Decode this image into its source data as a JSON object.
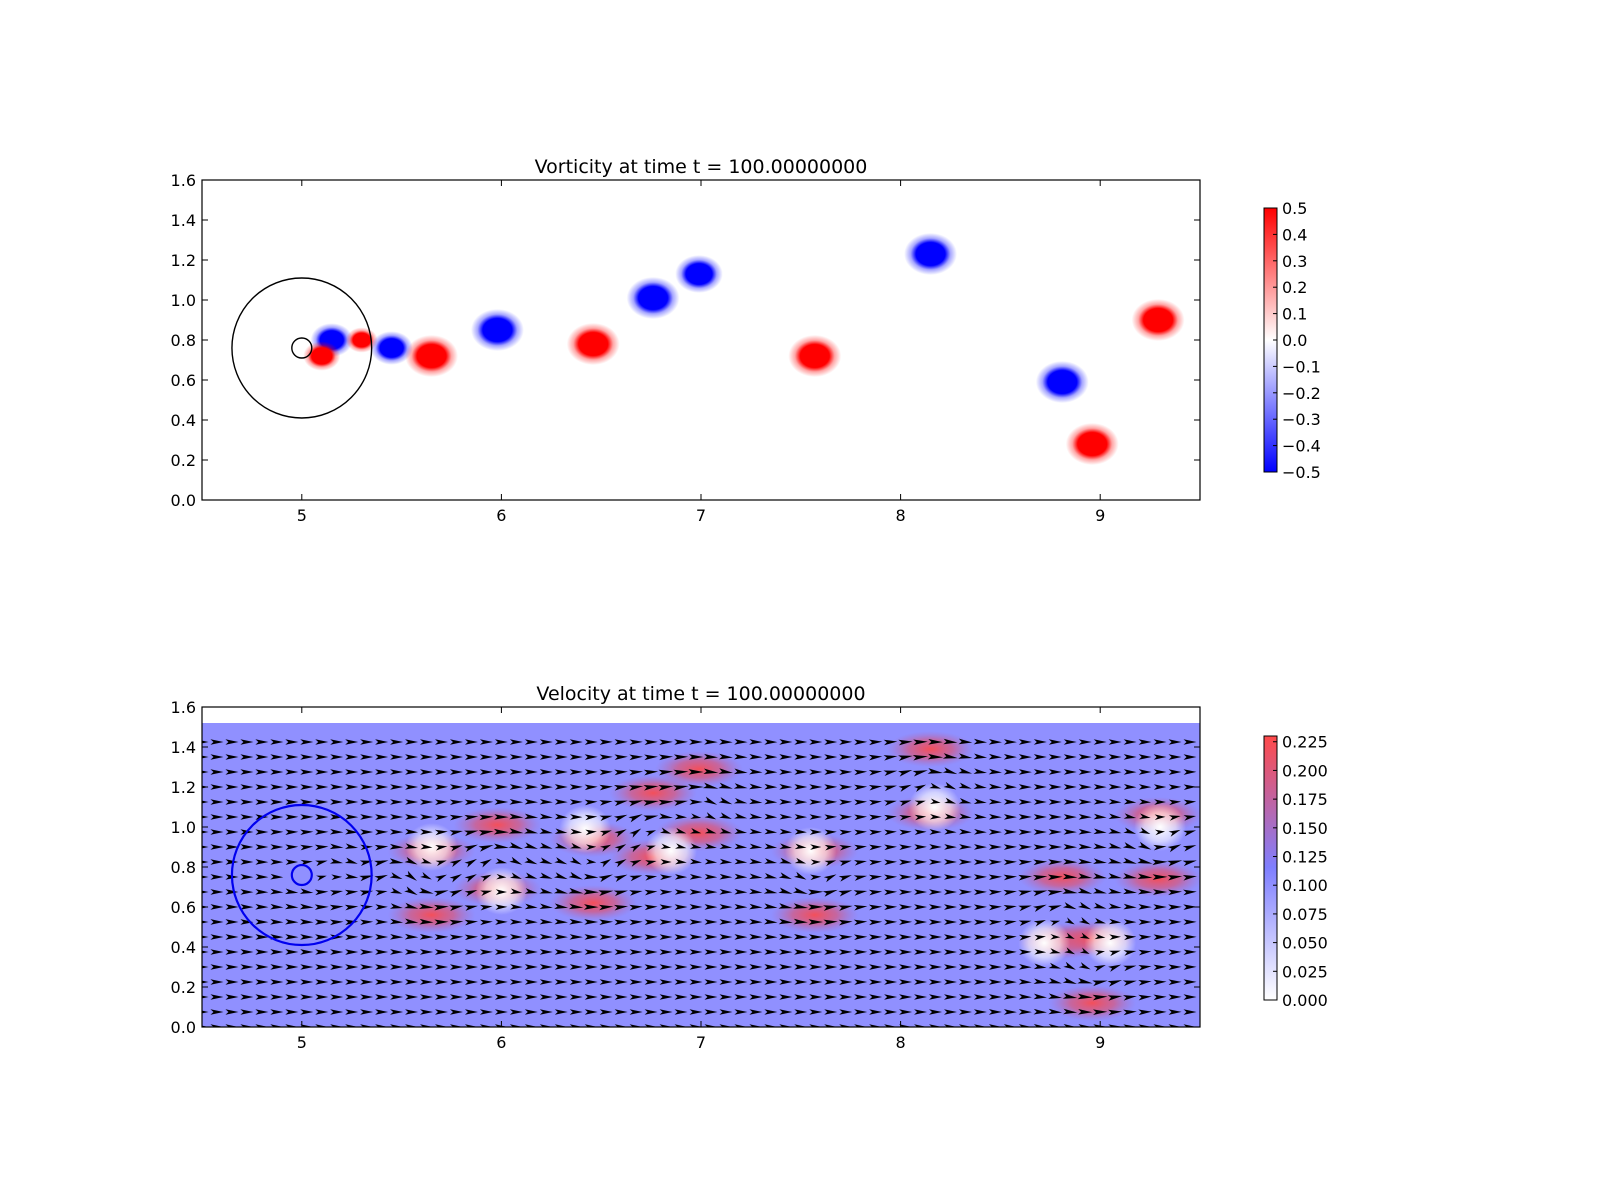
{
  "chart_data": [
    {
      "type": "heatmap",
      "title": "Vorticity at time t =   100.00000000",
      "xlabel": "",
      "ylabel": "",
      "xlim": [
        4.5,
        9.5
      ],
      "ylim": [
        0.0,
        1.6
      ],
      "xticks": [
        "5",
        "6",
        "7",
        "8",
        "9"
      ],
      "yticks": [
        "0.0",
        "0.2",
        "0.4",
        "0.6",
        "0.8",
        "1.0",
        "1.2",
        "1.4",
        "1.6"
      ],
      "colormap": [
        "#0000ff",
        "#ffffff",
        "#ff0000"
      ],
      "colorbar": {
        "range": [
          -0.5,
          0.5
        ],
        "ticks": [
          "0.5",
          "0.4",
          "0.3",
          "0.2",
          "0.1",
          "0.0",
          "−0.1",
          "−0.2",
          "−0.3",
          "−0.4",
          "−0.5"
        ]
      },
      "boundary_circles": [
        {
          "cx": 5.0,
          "cy": 0.76,
          "r": 0.35,
          "color": "#000000"
        },
        {
          "cx": 5.0,
          "cy": 0.76,
          "r": 0.05,
          "color": "#000000"
        }
      ],
      "vortices": [
        {
          "x": 5.15,
          "y": 0.8,
          "sign": -1,
          "strength": 0.8
        },
        {
          "x": 5.1,
          "y": 0.72,
          "sign": 1,
          "strength": 0.7
        },
        {
          "x": 5.3,
          "y": 0.8,
          "sign": 1,
          "strength": 0.6
        },
        {
          "x": 5.45,
          "y": 0.76,
          "sign": -1,
          "strength": 0.8
        },
        {
          "x": 5.65,
          "y": 0.72,
          "sign": 1,
          "strength": 1.0
        },
        {
          "x": 5.98,
          "y": 0.85,
          "sign": -1,
          "strength": 1.0
        },
        {
          "x": 6.46,
          "y": 0.78,
          "sign": 1,
          "strength": 1.0
        },
        {
          "x": 6.76,
          "y": 1.01,
          "sign": -1,
          "strength": 1.0
        },
        {
          "x": 6.99,
          "y": 1.13,
          "sign": -1,
          "strength": 0.9
        },
        {
          "x": 7.57,
          "y": 0.72,
          "sign": 1,
          "strength": 1.0
        },
        {
          "x": 8.15,
          "y": 1.23,
          "sign": -1,
          "strength": 1.0
        },
        {
          "x": 8.81,
          "y": 0.59,
          "sign": -1,
          "strength": 1.0
        },
        {
          "x": 8.96,
          "y": 0.28,
          "sign": 1,
          "strength": 1.0
        },
        {
          "x": 9.29,
          "y": 0.9,
          "sign": 1,
          "strength": 1.0
        }
      ]
    },
    {
      "type": "heatmap",
      "title": "Velocity at time t =   100.00000000",
      "xlabel": "",
      "ylabel": "",
      "xlim": [
        4.5,
        9.5
      ],
      "ylim": [
        0.0,
        1.6
      ],
      "xticks": [
        "5",
        "6",
        "7",
        "8",
        "9"
      ],
      "yticks": [
        "0.0",
        "0.2",
        "0.4",
        "0.6",
        "0.8",
        "1.0",
        "1.2",
        "1.4",
        "1.6"
      ],
      "data_ymax": 1.52,
      "colormap": [
        "#ffffff",
        "#7f7fff",
        "#ff4a4a"
      ],
      "colorbar": {
        "range": [
          0.0,
          0.23
        ],
        "ticks": [
          "0.225",
          "0.200",
          "0.175",
          "0.150",
          "0.125",
          "0.100",
          "0.075",
          "0.050",
          "0.025",
          "0.000"
        ]
      },
      "boundary_circles": [
        {
          "cx": 5.0,
          "cy": 0.76,
          "r": 0.35,
          "color": "#0000ee"
        },
        {
          "cx": 5.0,
          "cy": 0.76,
          "r": 0.05,
          "color": "#0000ee"
        }
      ],
      "quiver_spacing": {
        "dx": 0.075,
        "dy": 0.075
      },
      "background_flow": 0.1,
      "low_speed_regions": [
        {
          "x": 5.65,
          "y": 0.9
        },
        {
          "x": 6.0,
          "y": 0.68
        },
        {
          "x": 6.42,
          "y": 0.99
        },
        {
          "x": 6.85,
          "y": 0.88
        },
        {
          "x": 7.55,
          "y": 0.88
        },
        {
          "x": 8.17,
          "y": 1.1
        },
        {
          "x": 8.72,
          "y": 0.42
        },
        {
          "x": 9.05,
          "y": 0.42
        },
        {
          "x": 9.3,
          "y": 1.0
        }
      ]
    }
  ]
}
